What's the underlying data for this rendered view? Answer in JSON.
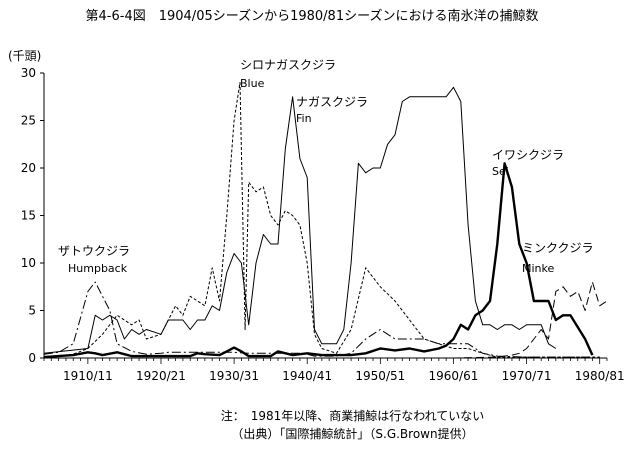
{
  "chart_data": {
    "type": "line",
    "title": "第4-6-4図　1904/05シーズンから1980/81シーズンにおける南氷洋の捕鯨数",
    "ylabel": "(千頭)",
    "xlabel": "",
    "xlim": [
      1904,
      1981
    ],
    "ylim": [
      0,
      30
    ],
    "yticks": [
      0,
      5,
      10,
      15,
      20,
      25,
      30
    ],
    "xticks": [
      {
        "value": 1910,
        "label": "1910/11"
      },
      {
        "value": 1920,
        "label": "1920/21"
      },
      {
        "value": 1930,
        "label": "1930/31"
      },
      {
        "value": 1940,
        "label": "1940/41"
      },
      {
        "value": 1950,
        "label": "1950/51"
      },
      {
        "value": 1960,
        "label": "1960/61"
      },
      {
        "value": 1970,
        "label": "1970/71"
      },
      {
        "value": 1980,
        "label": "1980/81"
      }
    ],
    "grid": false,
    "series": [
      {
        "name": "ザトウクジラ",
        "name_en": "Humpback",
        "style": "dash-dot",
        "x": [
          1904,
          1906,
          1908,
          1910,
          1911,
          1913,
          1914,
          1916,
          1918,
          1920,
          1921,
          1922,
          1924,
          1926,
          1928,
          1930,
          1932,
          1934,
          1936,
          1937,
          1939,
          1940,
          1941,
          1942,
          1944,
          1946,
          1948,
          1950,
          1952,
          1954,
          1956,
          1958,
          1960,
          1962,
          1964,
          1966,
          1970,
          1974,
          1978,
          1980
        ],
        "values": [
          0.4,
          0.6,
          1.5,
          7.0,
          8.0,
          5.0,
          1.5,
          0.7,
          0.4,
          0.5,
          0.6,
          0.6,
          0.6,
          0.6,
          0.6,
          0.6,
          0.5,
          0.5,
          0.5,
          0.5,
          0.5,
          0.4,
          0.2,
          0.2,
          0.2,
          0.5,
          2.0,
          3.0,
          2.0,
          2.0,
          2.0,
          1.5,
          1.5,
          1.5,
          0.5,
          0.2,
          0.1,
          0.1,
          0.1,
          0.1
        ]
      },
      {
        "name": "シロナガスクジラ",
        "name_en": "Blue",
        "style": "dashed",
        "x": [
          1904,
          1908,
          1910,
          1912,
          1914,
          1916,
          1917,
          1918,
          1920,
          1922,
          1923,
          1924,
          1925,
          1926,
          1927,
          1928,
          1929,
          1930,
          1930.8,
          1931.5,
          1932,
          1933,
          1934,
          1935,
          1936,
          1937,
          1938,
          1939,
          1940,
          1941,
          1942,
          1944,
          1946,
          1948,
          1950,
          1952,
          1954,
          1956,
          1958,
          1960,
          1962,
          1964,
          1966,
          1970,
          1980
        ],
        "values": [
          0.1,
          0.4,
          1.0,
          2.5,
          4.5,
          3.5,
          4.0,
          2.0,
          2.5,
          5.5,
          4.5,
          6.5,
          6.0,
          5.5,
          9.5,
          6.0,
          15.0,
          25.0,
          29.0,
          3.0,
          18.5,
          17.5,
          18.0,
          15.0,
          14.0,
          15.5,
          15.0,
          14.0,
          10.0,
          2.5,
          1.0,
          0.5,
          3.0,
          9.5,
          7.5,
          6.0,
          4.0,
          2.0,
          1.5,
          1.0,
          1.0,
          0.5,
          0.1,
          0.1,
          0.1
        ]
      },
      {
        "name": "ナガスクジラ",
        "name_en": "Fin",
        "style": "thin-solid",
        "x": [
          1904,
          1910,
          1911,
          1912,
          1913,
          1914,
          1915,
          1916,
          1917,
          1918,
          1920,
          1921,
          1922,
          1923,
          1924,
          1925,
          1926,
          1927,
          1928,
          1929,
          1930,
          1931,
          1932,
          1933,
          1934,
          1935,
          1936,
          1937,
          1938,
          1939,
          1940,
          1941,
          1942,
          1944,
          1945,
          1946,
          1947,
          1948,
          1949,
          1950,
          1951,
          1952,
          1953,
          1954,
          1955,
          1956,
          1957,
          1958,
          1959,
          1960,
          1961,
          1962,
          1963,
          1964,
          1965,
          1966,
          1967,
          1968,
          1969,
          1970,
          1971,
          1972,
          1973,
          1974
        ],
        "values": [
          0.5,
          1.0,
          4.5,
          4.0,
          4.5,
          4.0,
          2.0,
          3.0,
          2.5,
          3.0,
          2.5,
          4.0,
          4.0,
          4.0,
          3.0,
          4.0,
          4.0,
          5.5,
          5.0,
          9.0,
          11.0,
          10.0,
          3.5,
          10.0,
          13.0,
          12.0,
          12.0,
          22.0,
          27.5,
          21.0,
          19.0,
          3.0,
          1.5,
          1.5,
          3.0,
          10.0,
          20.5,
          19.5,
          20.0,
          20.0,
          22.5,
          23.5,
          27.0,
          27.5,
          27.5,
          27.5,
          27.5,
          27.5,
          27.5,
          28.5,
          27.0,
          14.0,
          6.0,
          3.5,
          3.5,
          3.0,
          3.5,
          3.5,
          3.0,
          3.5,
          3.5,
          3.5,
          1.5,
          1.0
        ]
      },
      {
        "name": "イワシクジラ",
        "name_en": "Sei",
        "style": "thick-solid",
        "x": [
          1904,
          1908,
          1910,
          1911,
          1912,
          1914,
          1916,
          1918,
          1920,
          1922,
          1924,
          1925,
          1926,
          1928,
          1929,
          1930,
          1931,
          1932,
          1933,
          1934,
          1935,
          1936,
          1938,
          1940,
          1942,
          1944,
          1946,
          1948,
          1950,
          1952,
          1954,
          1956,
          1958,
          1959,
          1960,
          1961,
          1962,
          1963,
          1964,
          1965,
          1966,
          1967,
          1968,
          1969,
          1970,
          1971,
          1972,
          1973,
          1974,
          1975,
          1976,
          1978,
          1979
        ],
        "values": [
          0.1,
          0.3,
          0.6,
          0.5,
          0.3,
          0.6,
          0.2,
          0.2,
          0.2,
          0.2,
          0.2,
          0.5,
          0.4,
          0.3,
          0.7,
          1.1,
          0.7,
          0.2,
          0.2,
          0.2,
          0.2,
          0.7,
          0.3,
          0.5,
          0.3,
          0.3,
          0.3,
          0.5,
          1.0,
          0.8,
          1.0,
          0.7,
          1.0,
          1.3,
          2.0,
          3.5,
          3.0,
          4.5,
          5.0,
          6.0,
          12.0,
          20.5,
          18.0,
          12.0,
          10.0,
          6.0,
          6.0,
          6.0,
          4.0,
          4.5,
          4.5,
          2.0,
          0.3
        ]
      },
      {
        "name": "ミンククジラ",
        "name_en": "Minke",
        "style": "long-dash",
        "x": [
          1904,
          1920,
          1940,
          1950,
          1960,
          1966,
          1968,
          1969,
          1970,
          1971,
          1972,
          1973,
          1974,
          1975,
          1976,
          1977,
          1978,
          1979,
          1980,
          1981
        ],
        "values": [
          0,
          0,
          0,
          0,
          0,
          0.1,
          0.3,
          0.5,
          1.0,
          2.0,
          3.0,
          2.0,
          7.0,
          7.5,
          6.5,
          7.0,
          5.0,
          8.0,
          5.5,
          6.0
        ]
      }
    ],
    "annotations": [
      {
        "series": "ザトウクジラ",
        "ja": "ザトウクジラ",
        "en": "Humpback"
      },
      {
        "series": "シロナガスクジラ",
        "ja": "シロナガスクジラ",
        "en": "Blue"
      },
      {
        "series": "ナガスクジラ",
        "ja": "ナガスクジラ",
        "en": "Fin"
      },
      {
        "series": "イワシクジラ",
        "ja": "イワシクジラ",
        "en": "Sei"
      },
      {
        "series": "ミンククジラ",
        "ja": "ミンククジラ",
        "en": "Minke"
      }
    ]
  },
  "notes": {
    "note": "注：　1981年以降、商業捕鯨は行なわれていない",
    "source": "（出典）「国際捕鯨統計」（S.G.Brown提供）"
  }
}
